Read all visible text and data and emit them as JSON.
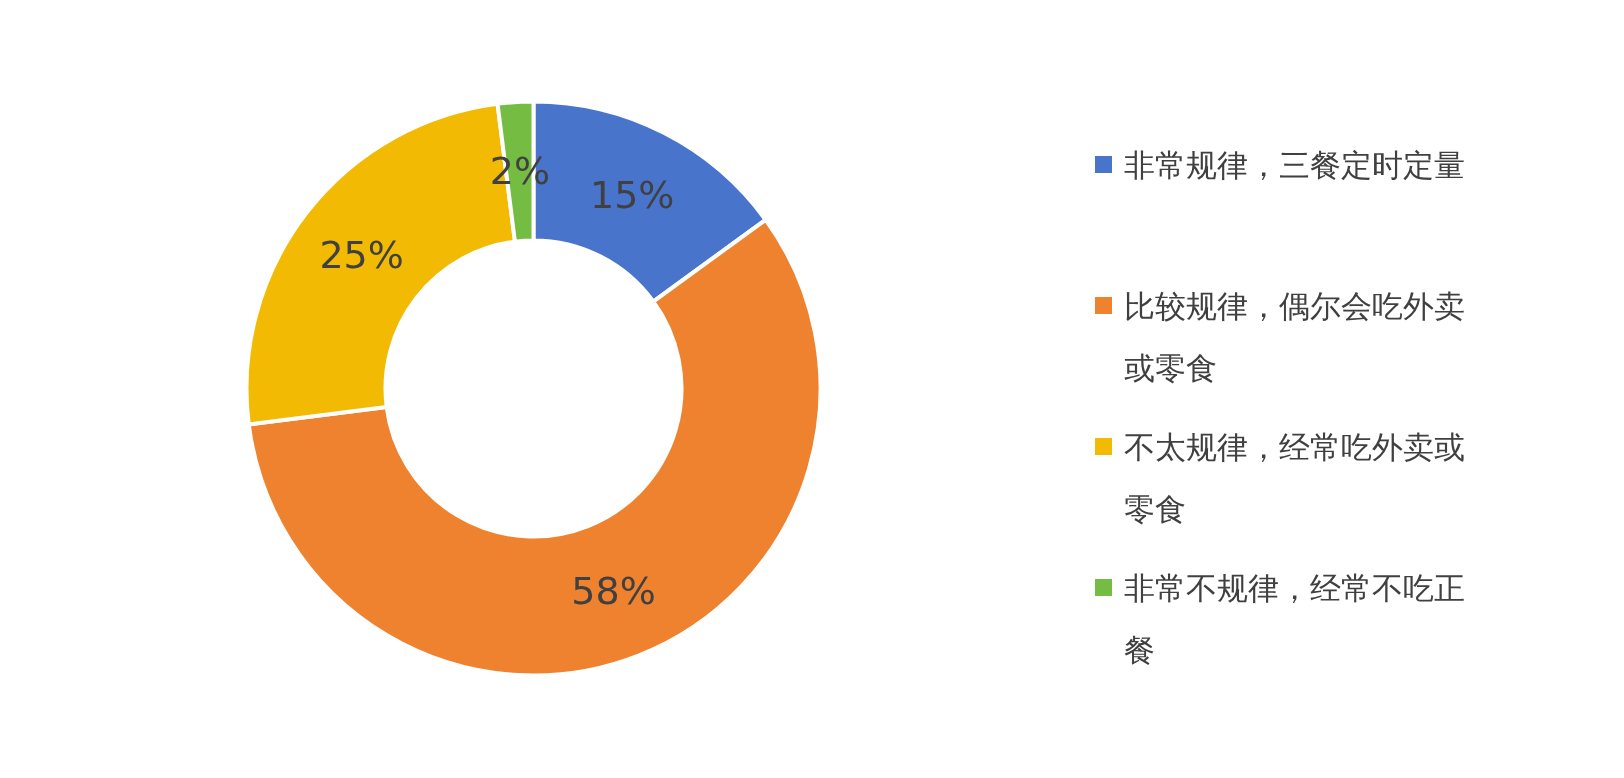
{
  "chart_data": {
    "type": "donut",
    "categories": [
      "非常规律，三餐定时定量",
      "比较规律，偶尔会吃外卖或零食",
      "不太规律，经常吃外卖或零食",
      "非常不规律，经常不吃正餐"
    ],
    "values": [
      15,
      58,
      25,
      2
    ],
    "value_labels": [
      "15%",
      "58%",
      "25%",
      "2%"
    ],
    "colors": [
      "#4874cb",
      "#ee822f",
      "#f2ba02",
      "#75bd42"
    ],
    "legend": "right"
  }
}
